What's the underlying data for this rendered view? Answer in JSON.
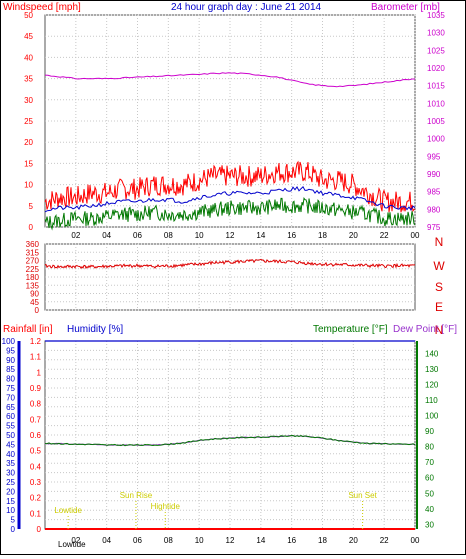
{
  "header": {
    "title": "24 hour graph day : June 21 2014",
    "left_label": "Windspeed [mph]",
    "right_label": "Barometer [mb]"
  },
  "colors": {
    "wind": "#ff0000",
    "avg_wind": "#0000cc",
    "direction": "#dd0000",
    "barometer": "#cc00cc",
    "temperature": "#007700",
    "dewpoint": "#9933cc",
    "humidity_axis": "#0000cc",
    "rain": "#ff0000",
    "tide": "#cccc00",
    "grid": "#c8c8c8"
  },
  "chart_data": [
    {
      "type": "line",
      "name": "wind-barometer",
      "title": "24 hour graph day : June 21 2014",
      "ylabel": "Windspeed [mph]",
      "y2label": "Barometer [mb]",
      "ylim": [
        0,
        50
      ],
      "y2lim": [
        975,
        1035
      ],
      "yticks": [
        "0",
        "5",
        "10",
        "15",
        "20",
        "25",
        "30",
        "35",
        "40",
        "45",
        "50"
      ],
      "y2ticks": [
        "975",
        "980",
        "985",
        "990",
        "995",
        "1000",
        "1005",
        "1010",
        "1015",
        "1020",
        "1025",
        "1030",
        "1035"
      ],
      "xticks": [
        "02",
        "04",
        "06",
        "08",
        "10",
        "12",
        "14",
        "16",
        "18",
        "20",
        "22",
        "00"
      ],
      "x": [
        0,
        1,
        2,
        3,
        4,
        5,
        6,
        7,
        8,
        9,
        10,
        11,
        12,
        13,
        14,
        15,
        16,
        17,
        18,
        19,
        20,
        21,
        22,
        23,
        24
      ],
      "series": [
        {
          "key": "gust",
          "values": [
            6,
            7,
            7,
            8,
            8,
            9,
            9,
            10,
            10,
            10,
            11,
            12,
            12,
            12,
            12,
            13,
            13,
            13,
            11,
            11,
            10,
            8,
            6,
            6,
            6
          ]
        },
        {
          "key": "wind",
          "values": [
            4,
            4.5,
            4.5,
            5,
            5.5,
            6,
            6,
            6.5,
            6.5,
            6,
            7,
            7.5,
            8,
            8,
            8,
            8.5,
            9,
            9,
            8,
            7.5,
            7,
            6,
            5,
            4.5,
            4.5
          ]
        },
        {
          "key": "wind_min",
          "values": [
            1,
            1.5,
            2,
            2,
            2.5,
            3,
            3,
            3.5,
            3,
            3,
            3.5,
            4,
            4.5,
            4.5,
            4.5,
            5,
            5,
            5,
            4.5,
            4,
            3.5,
            3,
            2,
            2,
            2
          ]
        },
        {
          "key": "barometer",
          "values": [
            1018,
            1017.5,
            1017,
            1017,
            1017,
            1017.2,
            1017.4,
            1017.6,
            1017.8,
            1018,
            1018.2,
            1018.5,
            1018.6,
            1018.4,
            1018,
            1017.5,
            1016.5,
            1015.5,
            1015,
            1014.8,
            1015,
            1015.5,
            1016,
            1016.5,
            1017
          ]
        }
      ]
    },
    {
      "type": "scatter",
      "name": "wind-direction",
      "ylim": [
        0,
        360
      ],
      "yticks": [
        "0",
        "45",
        "90",
        "135",
        "180",
        "225",
        "270",
        "315",
        "360"
      ],
      "compass": [
        "N",
        "W",
        "S",
        "E",
        "N"
      ],
      "x": [
        0,
        1,
        2,
        3,
        4,
        5,
        6,
        7,
        8,
        9,
        10,
        11,
        12,
        13,
        14,
        15,
        16,
        17,
        18,
        19,
        20,
        21,
        22,
        23,
        24
      ],
      "series": [
        {
          "key": "direction",
          "values": [
            240,
            235,
            238,
            235,
            238,
            240,
            242,
            238,
            240,
            245,
            250,
            258,
            262,
            265,
            268,
            265,
            262,
            255,
            250,
            248,
            245,
            242,
            240,
            242,
            240
          ]
        }
      ]
    },
    {
      "type": "line",
      "name": "rain-humidity-temperature",
      "labels": [
        "Rainfall [in]",
        "Humidity [%]",
        "Temperature [°F]",
        "Dew Point [°F]"
      ],
      "rain_ticks": [
        "0",
        "0.1",
        "0.2",
        "0.3",
        "0.4",
        "0.5",
        "0.6",
        "0.7",
        "0.8",
        "0.9",
        "1",
        "1.1",
        "1.2"
      ],
      "humidity_ticks": [
        "0",
        "5",
        "10",
        "15",
        "20",
        "25",
        "30",
        "35",
        "40",
        "45",
        "50",
        "55",
        "60",
        "65",
        "70",
        "75",
        "80",
        "85",
        "90",
        "95",
        "100"
      ],
      "temp_ticks": [
        "30",
        "40",
        "50",
        "60",
        "70",
        "80",
        "90",
        "100",
        "110",
        "120",
        "130",
        "140"
      ],
      "xticks": [
        "02",
        "04",
        "06",
        "08",
        "10",
        "12",
        "14",
        "16",
        "18",
        "20",
        "22",
        "00"
      ],
      "temp_lim": [
        27,
        148
      ],
      "x": [
        0,
        1,
        2,
        3,
        4,
        5,
        6,
        7,
        8,
        9,
        10,
        11,
        12,
        13,
        14,
        15,
        16,
        17,
        18,
        19,
        20,
        21,
        22,
        23,
        24
      ],
      "series": [
        {
          "key": "temperature",
          "values": [
            82,
            82,
            81.5,
            81.5,
            81,
            81,
            81,
            81,
            81.5,
            82.5,
            84,
            85,
            85.5,
            86,
            86,
            86.5,
            87,
            86.5,
            85.5,
            84,
            83,
            82,
            82,
            81.5,
            81.5
          ]
        },
        {
          "key": "dewpoint",
          "values": [
            82,
            82,
            81.5,
            81.5,
            81,
            81,
            81,
            81,
            81.5,
            82.5,
            84,
            85,
            85.5,
            86,
            86,
            86.5,
            87,
            86.5,
            85.5,
            84,
            83,
            82,
            82,
            81.5,
            81.5
          ]
        },
        {
          "key": "humidity",
          "values": [
            100,
            100,
            100,
            100,
            100,
            100,
            100,
            100,
            100,
            100,
            100,
            100,
            100,
            100,
            100,
            100,
            100,
            100,
            100,
            100,
            100,
            100,
            100,
            100,
            100
          ]
        },
        {
          "key": "rain",
          "values": [
            0,
            0,
            0,
            0,
            0,
            0,
            0,
            0,
            0,
            0,
            0,
            0,
            0,
            0,
            0,
            0,
            0,
            0,
            0,
            0,
            0,
            0,
            0,
            0,
            0
          ]
        }
      ],
      "annotations": [
        {
          "key": "lowtide1",
          "text": "Lowtide",
          "x": 1.5
        },
        {
          "key": "sunrise",
          "text": "Sun Rise",
          "x": 5.9
        },
        {
          "key": "hightide",
          "text": "Hightide",
          "x": 7.8
        },
        {
          "key": "sunset",
          "text": "Sun Set",
          "x": 20.6
        }
      ],
      "bottom_labels": [
        "Lowtide"
      ]
    }
  ]
}
